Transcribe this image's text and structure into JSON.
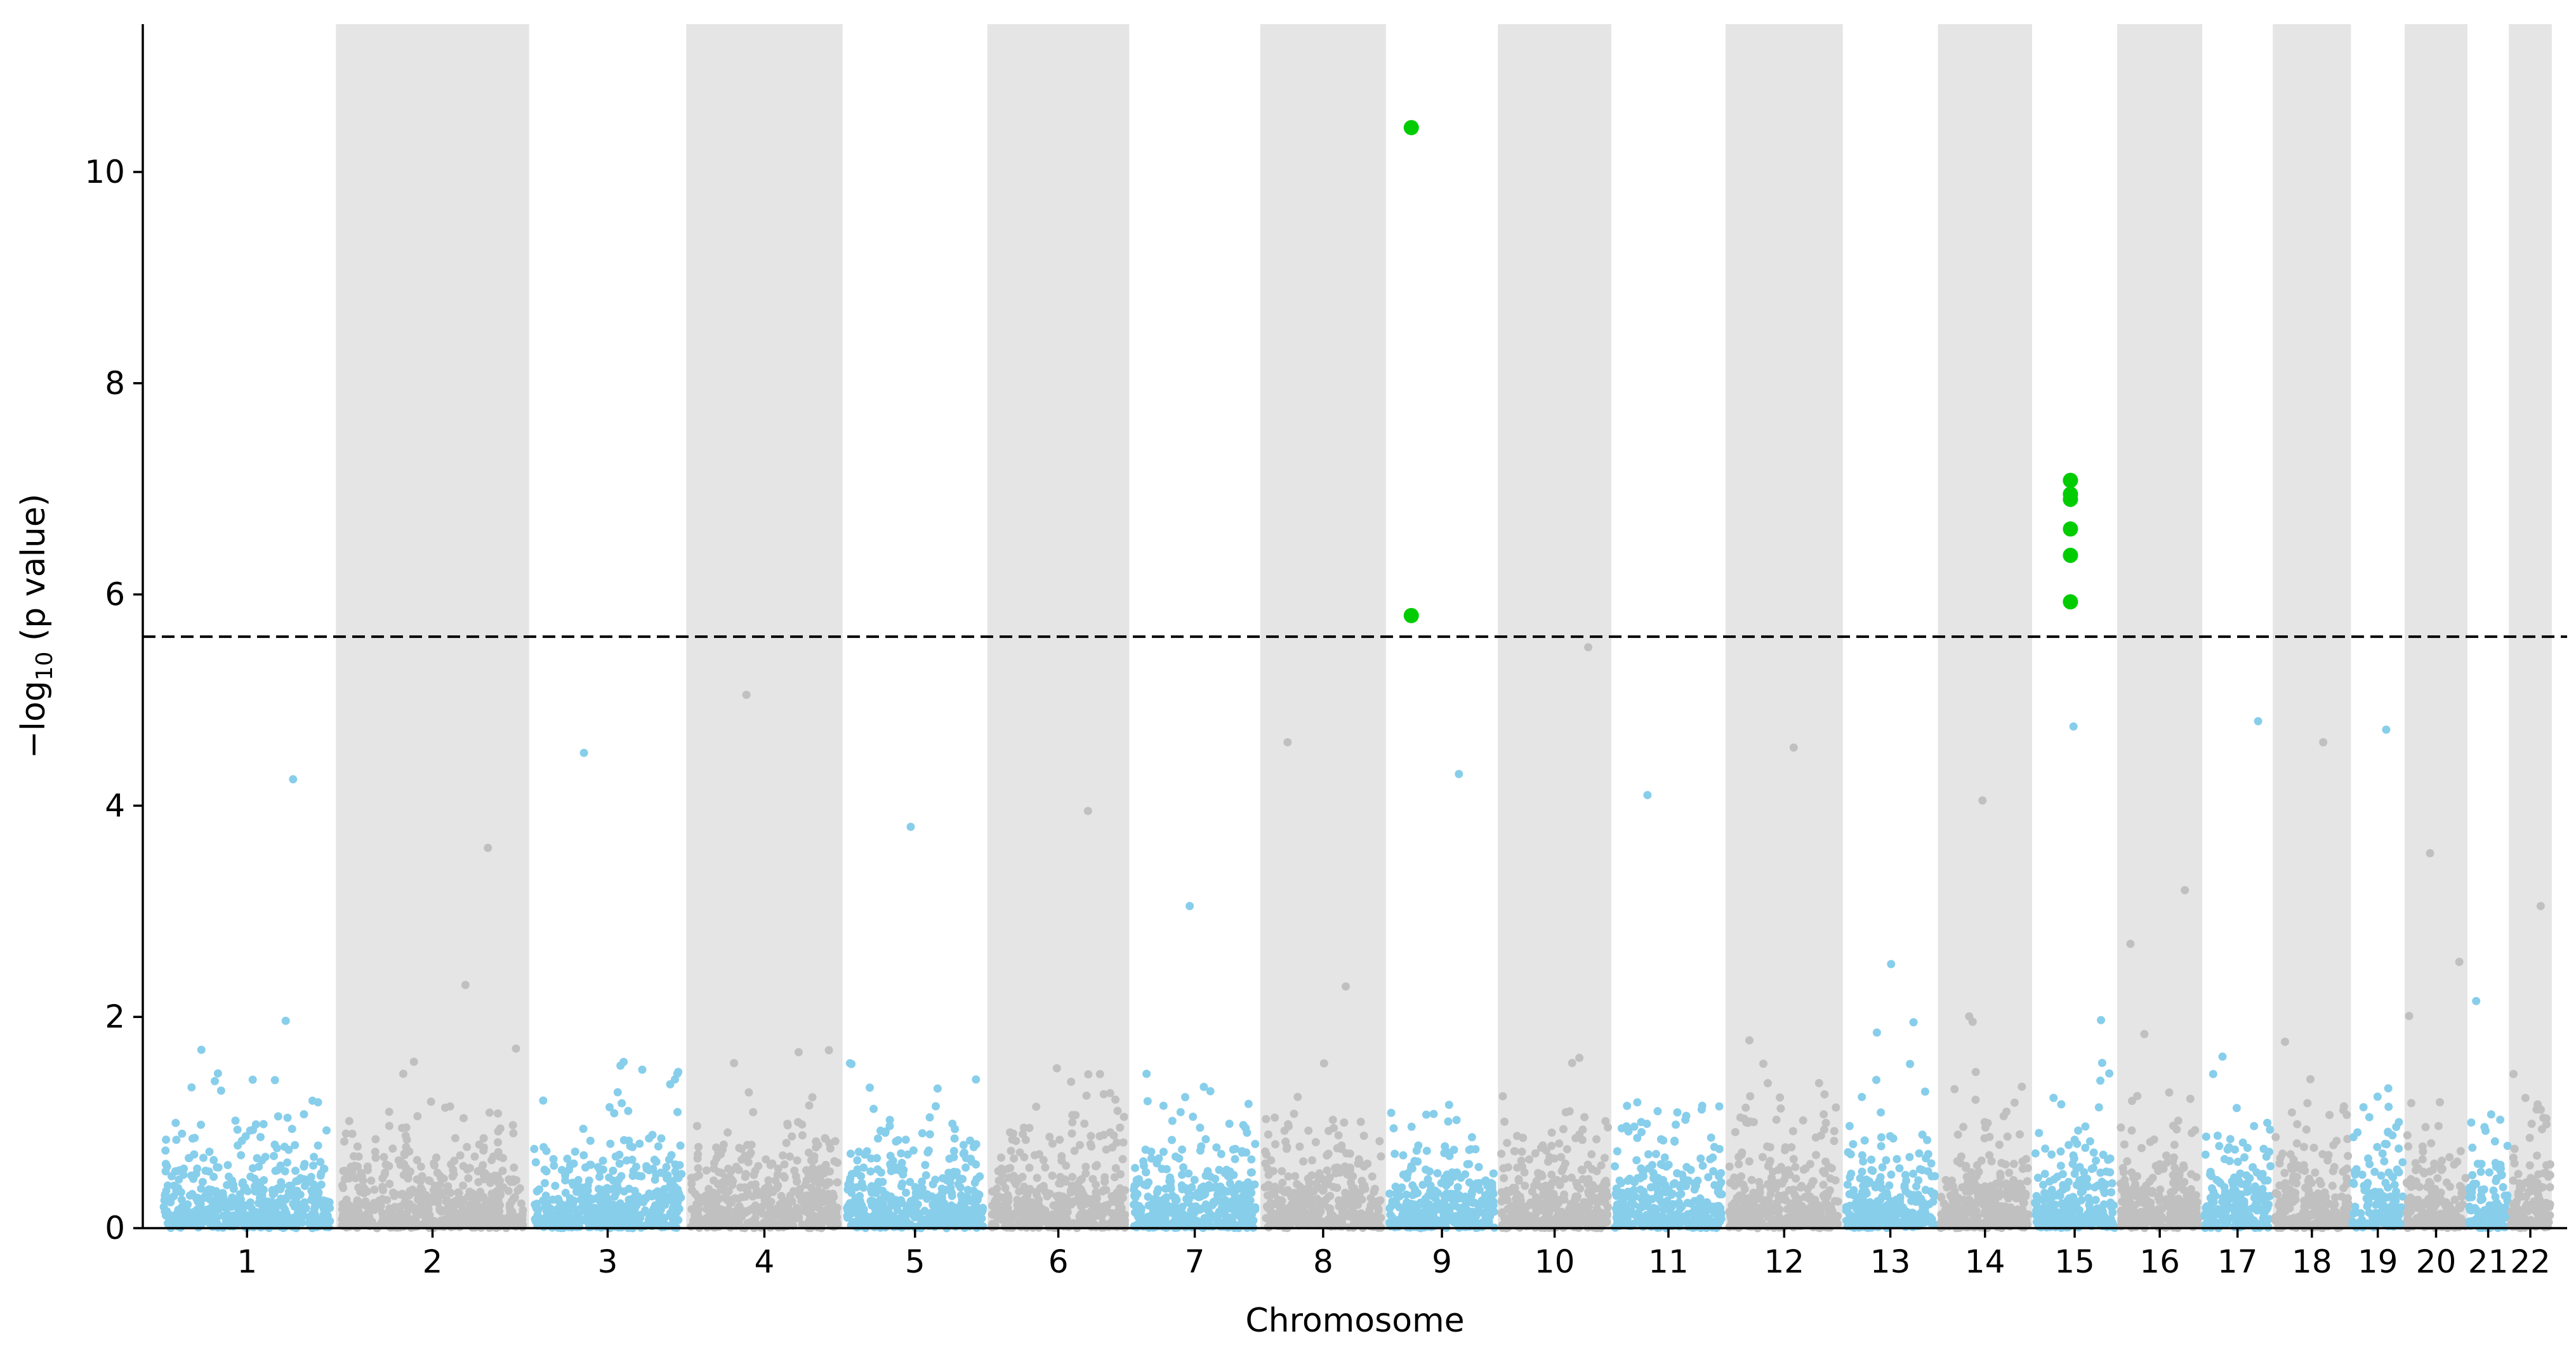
{
  "chart_data": {
    "type": "scatter",
    "subtype": "manhattan",
    "title": "",
    "xlabel": "Chromosome",
    "ylabel_prefix": "−log",
    "ylabel_subscript": "10",
    "ylabel_suffix": " (p value)",
    "ylim": [
      0,
      11.4
    ],
    "yticks": [
      0,
      2,
      4,
      6,
      8,
      10
    ],
    "significance_threshold": 5.6,
    "chromosomes": [
      {
        "label": "1",
        "start": 0,
        "end": 232
      },
      {
        "label": "2",
        "start": 232,
        "end": 484
      },
      {
        "label": "3",
        "start": 484,
        "end": 689
      },
      {
        "label": "4",
        "start": 689,
        "end": 893
      },
      {
        "label": "5",
        "start": 893,
        "end": 1082
      },
      {
        "label": "6",
        "start": 1082,
        "end": 1267
      },
      {
        "label": "7",
        "start": 1267,
        "end": 1438
      },
      {
        "label": "8",
        "start": 1438,
        "end": 1602
      },
      {
        "label": "9",
        "start": 1602,
        "end": 1748
      },
      {
        "label": "10",
        "start": 1748,
        "end": 1896
      },
      {
        "label": "11",
        "start": 1896,
        "end": 2045
      },
      {
        "label": "12",
        "start": 2045,
        "end": 2198
      },
      {
        "label": "13",
        "start": 2198,
        "end": 2322
      },
      {
        "label": "14",
        "start": 2322,
        "end": 2445
      },
      {
        "label": "15",
        "start": 2445,
        "end": 2556
      },
      {
        "label": "16",
        "start": 2556,
        "end": 2667
      },
      {
        "label": "17",
        "start": 2667,
        "end": 2759
      },
      {
        "label": "18",
        "start": 2759,
        "end": 2861
      },
      {
        "label": "19",
        "start": 2861,
        "end": 2931
      },
      {
        "label": "20",
        "start": 2931,
        "end": 3013
      },
      {
        "label": "21",
        "start": 3013,
        "end": 3067
      },
      {
        "label": "22",
        "start": 3067,
        "end": 3123
      }
    ],
    "xlim": [
      -20,
      3143
    ],
    "background_band_every_other": true,
    "colors": {
      "odd_chromosome": "#87ceeb",
      "even_chromosome": "#c0c0c0",
      "significant": "#00cc00",
      "band": "#e5e5e5",
      "threshold": "#000000",
      "axis": "#000000"
    },
    "max_background_peak": [
      4.25,
      3.6,
      4.5,
      5.05,
      3.8,
      3.95,
      3.05,
      4.6,
      4.3,
      5.5,
      4.1,
      4.55,
      2.5,
      4.05,
      4.75,
      3.2,
      4.8,
      4.6,
      4.72,
      3.55,
      2.15,
      3.05
    ],
    "significant_points": [
      {
        "chromosome": "9",
        "position": 1635,
        "value": 10.42
      },
      {
        "chromosome": "9",
        "position": 1635,
        "value": 5.8
      },
      {
        "chromosome": "15",
        "position": 2495,
        "value": 7.08
      },
      {
        "chromosome": "15",
        "position": 2495,
        "value": 6.95
      },
      {
        "chromosome": "15",
        "position": 2495,
        "value": 6.9
      },
      {
        "chromosome": "15",
        "position": 2495,
        "value": 6.62
      },
      {
        "chromosome": "15",
        "position": 2495,
        "value": 6.37
      },
      {
        "chromosome": "15",
        "position": 2495,
        "value": 5.93
      }
    ]
  }
}
